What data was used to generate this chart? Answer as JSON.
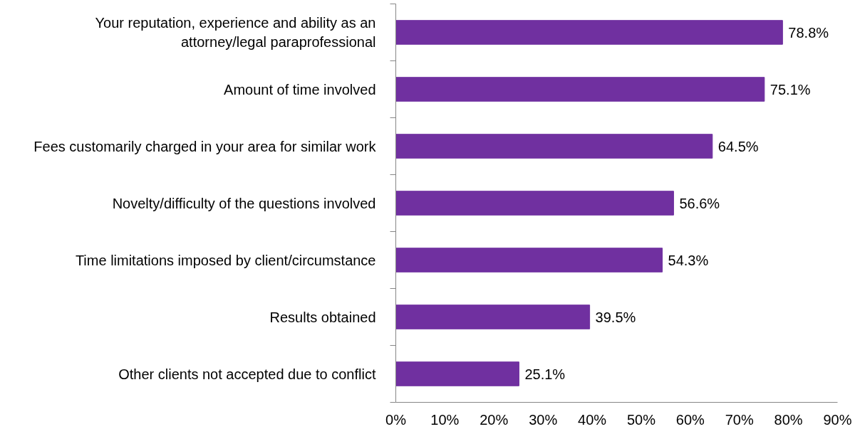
{
  "chart_data": {
    "type": "bar",
    "orientation": "horizontal",
    "categories": [
      "Your reputation, experience and ability as an\nattorney/legal paraprofessional",
      "Amount of time involved",
      "Fees customarily charged in your area for similar work",
      "Novelty/difficulty of the questions involved",
      "Time limitations imposed by client/circumstance",
      "Results obtained",
      "Other clients not accepted due to conflict"
    ],
    "values": [
      78.8,
      75.1,
      64.5,
      56.6,
      54.3,
      39.5,
      25.1
    ],
    "value_labels": [
      "78.8%",
      "75.1%",
      "64.5%",
      "56.6%",
      "54.3%",
      "39.5%",
      "25.1%"
    ],
    "color": "#7030a0",
    "xlim": [
      0,
      90
    ],
    "xticks": [
      {
        "value": 0,
        "label": "0%"
      },
      {
        "value": 10,
        "label": "10%"
      },
      {
        "value": 20,
        "label": "20%"
      },
      {
        "value": 30,
        "label": "30%"
      },
      {
        "value": 40,
        "label": "40%"
      },
      {
        "value": 50,
        "label": "50%"
      },
      {
        "value": 60,
        "label": "60%"
      },
      {
        "value": 70,
        "label": "70%"
      },
      {
        "value": 80,
        "label": "80%"
      },
      {
        "value": 90,
        "label": "90%"
      }
    ],
    "grid": false
  }
}
